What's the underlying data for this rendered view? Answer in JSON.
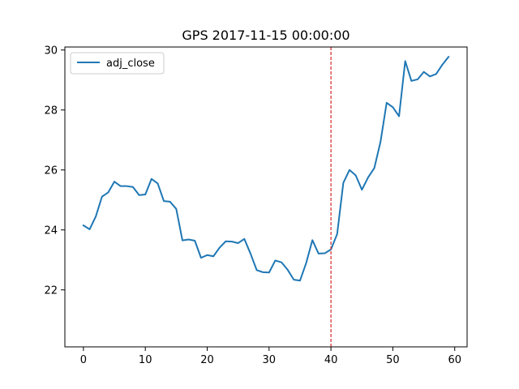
{
  "chart_data": {
    "type": "line",
    "title": "GPS 2017-11-15 00:00:00",
    "xlabel": "",
    "ylabel": "",
    "xlim": [
      -3,
      62
    ],
    "ylim": [
      20.1,
      30.1
    ],
    "xticks": [
      0,
      10,
      20,
      30,
      40,
      50,
      60
    ],
    "yticks": [
      22,
      24,
      26,
      28,
      30
    ],
    "legend": {
      "placement": "top-left"
    },
    "grid": false,
    "vline": {
      "x": 40,
      "color": "#d62728",
      "style": "dashed"
    },
    "series": [
      {
        "name": "adj_close",
        "color": "#1f77b4",
        "x": [
          0,
          1,
          2,
          3,
          4,
          5,
          6,
          7,
          8,
          9,
          10,
          11,
          12,
          13,
          14,
          15,
          16,
          17,
          18,
          19,
          20,
          21,
          22,
          23,
          24,
          25,
          26,
          27,
          28,
          29,
          30,
          31,
          32,
          33,
          34,
          35,
          36,
          37,
          38,
          39,
          40,
          41,
          42,
          43,
          44,
          45,
          46,
          47,
          48,
          49,
          50,
          51,
          52,
          53,
          54,
          55,
          56,
          57,
          58,
          59
        ],
        "values": [
          24.15,
          24.02,
          24.45,
          25.11,
          25.25,
          25.61,
          25.46,
          25.46,
          25.43,
          25.16,
          25.18,
          25.7,
          25.55,
          24.96,
          24.94,
          24.7,
          23.65,
          23.68,
          23.64,
          23.07,
          23.16,
          23.12,
          23.41,
          23.62,
          23.61,
          23.56,
          23.7,
          23.21,
          22.66,
          22.59,
          22.58,
          22.98,
          22.92,
          22.67,
          22.34,
          22.31,
          22.9,
          23.66,
          23.21,
          23.22,
          23.35,
          23.86,
          25.57,
          26.0,
          25.82,
          25.34,
          25.75,
          26.06,
          26.93,
          28.24,
          28.09,
          27.79,
          29.63,
          28.97,
          29.02,
          29.27,
          29.12,
          29.2,
          29.51,
          29.77
        ]
      }
    ]
  }
}
